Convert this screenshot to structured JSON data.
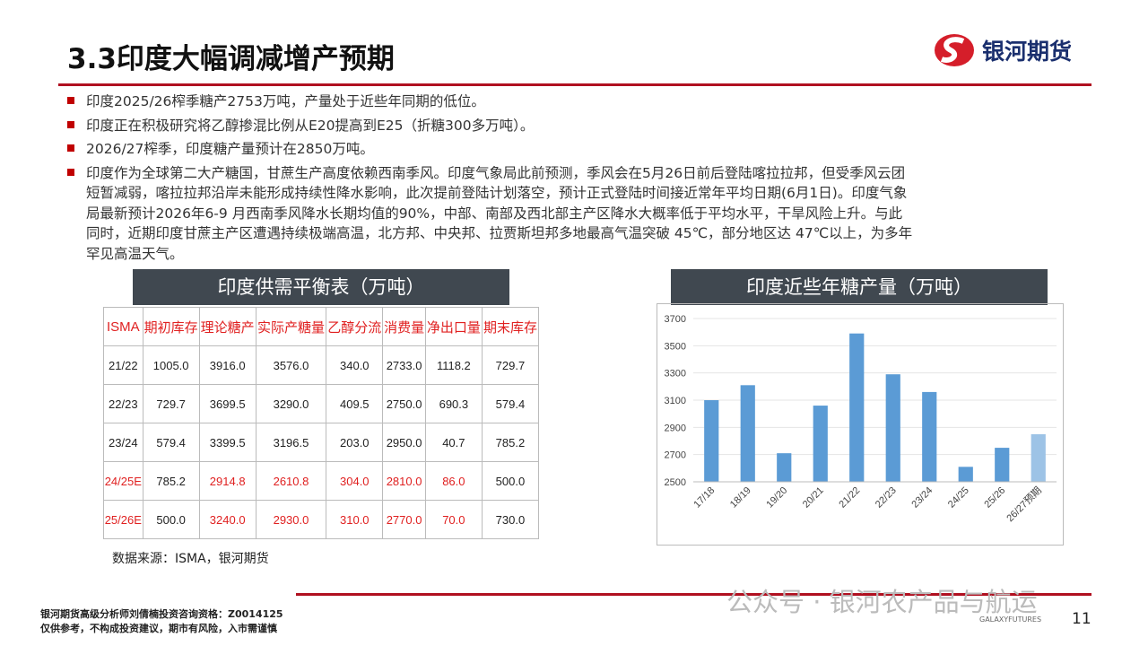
{
  "header": {
    "title": "3.3印度大幅调减增产预期",
    "logo": "银河期货"
  },
  "bullets": [
    [
      "印度2025/26榨季糖产2753万吨，产量处于近些年同期的低位。"
    ],
    [
      "印度正在积极研究将乙醇掺混比例从E20提高到E25（折糖300多万吨）。"
    ],
    [
      "2026/27榨季，印度糖产量预计在2850万吨。"
    ],
    [
      "印度作为全球第二大产糖国，甘蔗生产高度依赖西南季风。印度气象局此前预测，季风会在5月26日前后登陆喀拉拉邦，但受季风云团",
      "短暂减弱，喀拉拉邦沿岸未能形成持续性降水影响，此次提前登陆计划落空，预计正式登陆时间接近常年平均日期(6月1日)。印度气象",
      "局最新预计2026年6-9 月西南季风降水长期均值的90%，中部、南部及西北部主产区降水大概率低于平均水平，干旱风险上升。与此",
      "同时，近期印度甘蔗主产区遭遇持续极端高温，北方邦、中央邦、拉贾斯坦邦多地最高气温突破 45℃，部分地区达 47℃以上，为多年",
      "罕见高温天气。"
    ]
  ],
  "table": {
    "title": "印度供需平衡表（万吨）",
    "headers": [
      "ISMA",
      "期初库存",
      "理论糖产",
      "实际产糖量",
      "乙醇分流",
      "消费量",
      "净出口量",
      "期末库存"
    ],
    "highlight_color": "#e02020",
    "highlight_columns": [
      0,
      2,
      3,
      4,
      5,
      6
    ],
    "rows": [
      {
        "cells": [
          "21/22",
          "1005.0",
          "3916.0",
          "3576.0",
          "340.0",
          "2733.0",
          "1118.2",
          "729.7"
        ],
        "highlight": false
      },
      {
        "cells": [
          "22/23",
          "729.7",
          "3699.5",
          "3290.0",
          "409.5",
          "2750.0",
          "690.3",
          "579.4"
        ],
        "highlight": false
      },
      {
        "cells": [
          "23/24",
          "579.4",
          "3399.5",
          "3196.5",
          "203.0",
          "2950.0",
          "40.7",
          "785.2"
        ],
        "highlight": false
      },
      {
        "cells": [
          "24/25E",
          "785.2",
          "2914.8",
          "2610.8",
          "304.0",
          "2810.0",
          "86.0",
          "500.0"
        ],
        "highlight": true
      },
      {
        "cells": [
          "25/26E",
          "500.0",
          "3240.0",
          "2930.0",
          "310.0",
          "2770.0",
          "70.0",
          "730.0"
        ],
        "highlight": true
      }
    ],
    "source": "数据来源：ISMA，银河期货"
  },
  "chart_data": {
    "type": "bar",
    "title": "印度近些年糖产量（万吨）",
    "categories": [
      "17/18",
      "18/19",
      "19/20",
      "20/21",
      "21/22",
      "22/23",
      "23/24",
      "24/25",
      "25/26",
      "26/27预期"
    ],
    "values": [
      3100,
      3210,
      2710,
      3060,
      3590,
      3290,
      3160,
      2610,
      2750,
      2850
    ],
    "colors": [
      "#5b9bd5",
      "#5b9bd5",
      "#5b9bd5",
      "#5b9bd5",
      "#5b9bd5",
      "#5b9bd5",
      "#5b9bd5",
      "#5b9bd5",
      "#5b9bd5",
      "#9dc3e6"
    ],
    "ylim": [
      2500,
      3700
    ],
    "yticks": [
      2500,
      2700,
      2900,
      3100,
      3300,
      3500,
      3700
    ],
    "grid": true
  },
  "footer": {
    "lines": [
      "银河期货高级分析师刘倩楠投资咨询资格：Z0014125",
      "仅供参考，不构成投资建议，期市有风险，入市需谨慎"
    ],
    "watermark": "公众号 · 银河农产品与航运",
    "brand": "GALAXYFUTURES",
    "page": "11"
  }
}
